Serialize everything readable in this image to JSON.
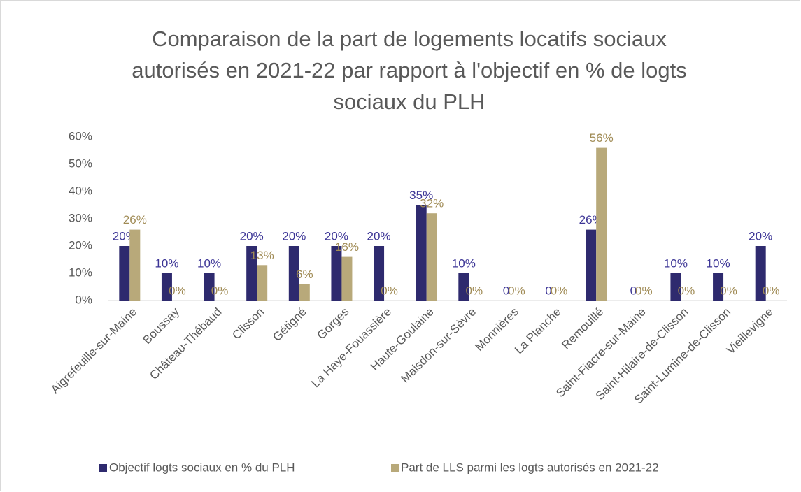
{
  "chart_data": {
    "type": "bar",
    "title": [
      "Comparaison de la part de logements locatifs sociaux",
      "autorisés en 2021-22 par rapport à l'objectif en % de logts",
      "sociaux du PLH"
    ],
    "categories": [
      "Aigrefeuille-sur-Maine",
      "Boussay",
      "Château-Thébaud",
      "Clisson",
      "Gétigné",
      "Gorges",
      "La Haye-Fouassière",
      "Haute-Goulaine",
      "Maisdon-sur-Sèvre",
      "Monnières",
      "La Planche",
      "Remouillé",
      "Saint-Fiacre-sur-Maine",
      "Saint-Hilaire-de-Clisson",
      "Saint-Lumine-de-Clisson",
      "Vieillevigne"
    ],
    "series": [
      {
        "name": "Objectif logts sociaux en % du PLH",
        "color": "#2e2a6e",
        "label_color": "#3c3596",
        "values": [
          20,
          10,
          10,
          20,
          20,
          20,
          20,
          35,
          10,
          0,
          0,
          26,
          0,
          10,
          10,
          20
        ],
        "value_labels": [
          "20%",
          "10%",
          "10%",
          "20%",
          "20%",
          "20%",
          "20%",
          "35%",
          "10%",
          "0",
          "0",
          "26%",
          "0",
          "10%",
          "10%",
          "20%"
        ]
      },
      {
        "name": "Part de LLS parmi les logts autorisés en 2021-22",
        "color": "#b8a97a",
        "label_color": "#a08b55",
        "values": [
          26,
          0,
          0,
          13,
          6,
          16,
          0,
          32,
          0,
          0,
          0,
          56,
          0,
          0,
          0,
          0
        ],
        "value_labels": [
          "26%",
          "0%",
          "0%",
          "13%",
          "6%",
          "16%",
          "0%",
          "32%",
          "0%",
          "0%",
          "0%",
          "56%",
          "0%",
          "0%",
          "0%",
          "0%"
        ]
      }
    ],
    "ylim": [
      0,
      60
    ],
    "yticks": [
      {
        "value": 0,
        "label": "0%"
      },
      {
        "value": 10,
        "label": "10%"
      },
      {
        "value": 20,
        "label": "20%"
      },
      {
        "value": 30,
        "label": "30%"
      },
      {
        "value": 40,
        "label": "40%"
      },
      {
        "value": 50,
        "label": "50%"
      },
      {
        "value": 60,
        "label": "60%"
      }
    ],
    "grid": false,
    "legend": "bottom"
  }
}
